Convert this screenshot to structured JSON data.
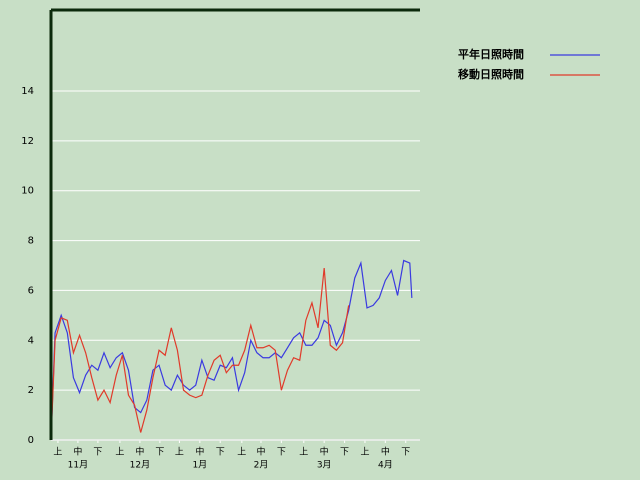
{
  "chart_data": {
    "type": "line",
    "x": [
      0,
      2,
      5,
      8,
      11,
      14,
      17,
      20,
      23,
      26,
      29,
      32,
      35,
      38,
      41,
      44,
      47,
      50,
      53,
      56,
      59,
      62,
      65,
      68,
      71,
      74,
      77,
      80,
      83,
      86,
      89,
      92,
      95,
      98,
      101,
      104,
      107,
      110,
      113,
      116,
      119,
      122,
      125,
      128,
      131,
      134,
      137,
      140,
      143,
      146,
      149,
      152,
      155,
      158,
      161,
      164,
      167,
      170,
      173,
      176,
      177
    ],
    "series": [
      {
        "name": "平年日照時間",
        "color": "#3a3ae0",
        "values": [
          0,
          4.3,
          5.0,
          4.3,
          2.5,
          1.9,
          2.6,
          3.0,
          2.8,
          3.5,
          2.9,
          3.3,
          3.5,
          2.8,
          1.3,
          1.1,
          1.6,
          2.8,
          3.0,
          2.2,
          2.0,
          2.6,
          2.2,
          2.0,
          2.2,
          3.2,
          2.5,
          2.4,
          3.0,
          2.9,
          3.3,
          2.0,
          2.7,
          4.0,
          3.5,
          3.3,
          3.3,
          3.5,
          3.3,
          3.7,
          4.1,
          4.3,
          3.8,
          3.8,
          4.1,
          4.8,
          4.6,
          3.8,
          4.3,
          5.2,
          6.5,
          7.1,
          5.3,
          5.4,
          5.7,
          6.4,
          6.8,
          5.8,
          7.2,
          7.1,
          5.7
        ]
      },
      {
        "name": "移動日照時間",
        "color": "#e03a2a",
        "values": [
          0,
          4.0,
          4.9,
          4.8,
          3.5,
          4.2,
          3.5,
          2.5,
          1.6,
          2.0,
          1.5,
          2.6,
          3.4,
          1.8,
          1.4,
          0.3,
          1.2,
          2.5,
          3.6,
          3.4,
          4.5,
          3.6,
          2.0,
          1.8,
          1.7,
          1.8,
          2.6,
          3.2,
          3.4,
          2.7,
          3.0,
          3.0,
          3.6,
          4.6,
          3.7,
          3.7,
          3.8,
          3.6,
          2.0,
          2.8,
          3.3,
          3.2,
          4.8,
          5.5,
          4.5,
          6.9,
          3.8,
          3.6,
          3.9,
          5.4,
          null,
          null,
          null,
          null,
          null,
          null,
          null,
          null,
          null,
          null,
          null
        ]
      }
    ],
    "xlim": [
      0,
      181
    ],
    "ylim": [
      0,
      17.25
    ],
    "yticks": [
      0,
      2,
      4,
      6,
      8,
      10,
      12,
      14
    ],
    "xticks": [
      {
        "value": 3.4,
        "label": "上"
      },
      {
        "value": 13.2,
        "label": "中"
      },
      {
        "value": 23,
        "label": "下"
      },
      {
        "value": 33.8,
        "label": "上"
      },
      {
        "value": 43.6,
        "label": "中"
      },
      {
        "value": 53.4,
        "label": "下"
      },
      {
        "value": 63,
        "label": "上"
      },
      {
        "value": 73,
        "label": "中"
      },
      {
        "value": 83,
        "label": "下"
      },
      {
        "value": 93.6,
        "label": "上"
      },
      {
        "value": 103,
        "label": "中"
      },
      {
        "value": 113,
        "label": "下"
      },
      {
        "value": 124,
        "label": "上"
      },
      {
        "value": 134,
        "label": "中"
      },
      {
        "value": 144,
        "label": "下"
      },
      {
        "value": 154,
        "label": "上"
      },
      {
        "value": 164,
        "label": "中"
      },
      {
        "value": 174,
        "label": "下"
      }
    ],
    "month_ticks": [
      {
        "value": 13.2,
        "label": "11月"
      },
      {
        "value": 43.6,
        "label": "12月"
      },
      {
        "value": 73,
        "label": "1月"
      },
      {
        "value": 103,
        "label": "2月"
      },
      {
        "value": 134,
        "label": "3月"
      },
      {
        "value": 164,
        "label": "4月"
      }
    ],
    "grid": true
  }
}
